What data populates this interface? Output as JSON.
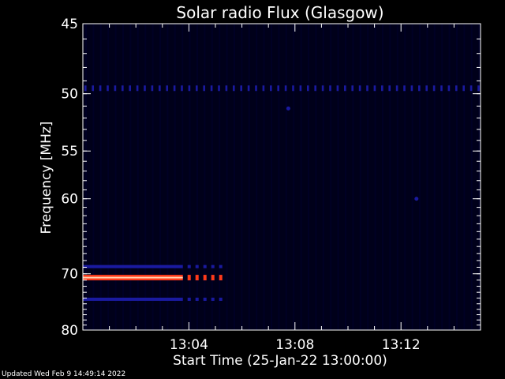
{
  "footer_text": "Updated Wed Feb  9 14:49:14 2022",
  "chart_data": {
    "type": "heatmap",
    "title": "Solar radio Flux (Glasgow)",
    "xlabel": "Start Time (25-Jan-22 13:00:00)",
    "ylabel": "Frequency [MHz]",
    "xlim": [
      "13:00:00",
      "13:15:00"
    ],
    "ylim": [
      45,
      80
    ],
    "ylim_note_order": "top-to-bottom",
    "x_ticks": [
      "13:04",
      "13:08",
      "13:12"
    ],
    "y_ticks": [
      45,
      50,
      55,
      60,
      70,
      80
    ],
    "colors": {
      "background": "#000000",
      "plot_background": "#00001a",
      "axis": "#ffffff",
      "weak_signal": "#1a1aa0",
      "strong_signal": "#ff3a1a",
      "strong_signal_core": "#ffd0b0"
    },
    "features": [
      {
        "kind": "dashed_band",
        "freq_mhz": 49.6,
        "start": "13:00:00",
        "end": "13:15:00",
        "intensity": "weak"
      },
      {
        "kind": "band",
        "freq_mhz": 68.9,
        "start": "13:00:00",
        "end": "13:05:10",
        "intensity": "weak"
      },
      {
        "kind": "band",
        "freq_mhz": 70.6,
        "start": "13:00:00",
        "end": "13:05:10",
        "intensity": "strong"
      },
      {
        "kind": "band",
        "freq_mhz": 74.2,
        "start": "13:00:00",
        "end": "13:05:10",
        "intensity": "weak"
      },
      {
        "kind": "spot",
        "freq_mhz": 51.2,
        "time": "13:07:45",
        "intensity": "weak"
      },
      {
        "kind": "spot",
        "freq_mhz": 60.0,
        "time": "13:12:35",
        "intensity": "weak"
      }
    ]
  }
}
